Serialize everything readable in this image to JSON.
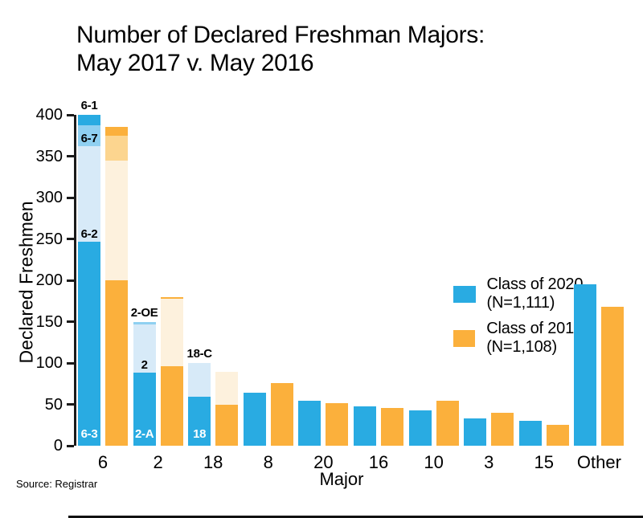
{
  "page": {
    "title_line1": "Number of Declared Freshman Majors:",
    "title_line2": "May 2017 v. May 2016",
    "source": "Source: Registrar"
  },
  "chart_data": {
    "type": "bar",
    "title": "Number of Declared Freshman Majors: May 2017 v. May 2016",
    "xlabel": "Major",
    "ylabel": "Declared Freshmen",
    "ylim": [
      0,
      400
    ],
    "yticks": [
      0,
      50,
      100,
      150,
      200,
      250,
      300,
      350,
      400
    ],
    "grid": false,
    "legend_position": "upper right inside plot",
    "legend": [
      {
        "label": "Class of 2020 (N=1,111)",
        "color": "#29ABE2"
      },
      {
        "label": "Class of 2019 (N=1,108)",
        "color": "#FBB03C"
      }
    ],
    "colors": {
      "s2020": {
        "solid": "#29ABE2",
        "medium": "#8FD0F1",
        "light": "#D7EAF8"
      },
      "s2019": {
        "solid": "#FBB03C",
        "medium": "#FCD58F",
        "light": "#FDF1DD"
      }
    },
    "categories": [
      "6",
      "2",
      "18",
      "8",
      "20",
      "16",
      "10",
      "3",
      "15",
      "Other"
    ],
    "series": [
      {
        "name": "Class of 2020 (N=1,111)",
        "key": "s2020",
        "totals": [
          400,
          150,
          100,
          64,
          54,
          48,
          43,
          33,
          30,
          195
        ]
      },
      {
        "name": "Class of 2019 (N=1,108)",
        "key": "s2019",
        "totals": [
          385,
          180,
          89,
          76,
          51,
          46,
          54,
          40,
          25,
          168
        ]
      }
    ],
    "bars": [
      {
        "category": "6",
        "s2020": {
          "segments": [
            {
              "label": "6-3",
              "value": 247,
              "shade": "solid",
              "label_color": "#FFFFFF",
              "label_pos": "base"
            },
            {
              "label": "6-2",
              "value": 115,
              "shade": "light",
              "label_color": "#000000",
              "label_pos": "bottom"
            },
            {
              "label": "6-7",
              "value": 25,
              "shade": "medium",
              "label_color": "#000000",
              "label_pos": "bottom"
            },
            {
              "label": "6-1",
              "value": 13,
              "shade": "solid",
              "label_color": "#000000",
              "label_pos": "above"
            }
          ]
        },
        "s2019": {
          "segments": [
            {
              "value": 200,
              "shade": "solid"
            },
            {
              "value": 145,
              "shade": "light"
            },
            {
              "value": 30,
              "shade": "medium"
            },
            {
              "value": 10,
              "shade": "solid"
            }
          ]
        }
      },
      {
        "category": "2",
        "s2020": {
          "segments": [
            {
              "label": "2-A",
              "value": 88,
              "shade": "solid",
              "label_color": "#FFFFFF",
              "label_pos": "base"
            },
            {
              "label": "2",
              "value": 59,
              "shade": "light",
              "label_color": "#000000",
              "label_pos": "bottom"
            },
            {
              "label": "2-OE",
              "value": 3,
              "shade": "medium",
              "label_color": "#000000",
              "label_pos": "above"
            }
          ]
        },
        "s2019": {
          "segments": [
            {
              "value": 96,
              "shade": "solid"
            },
            {
              "value": 82,
              "shade": "light"
            },
            {
              "value": 2,
              "shade": "solid"
            }
          ]
        }
      },
      {
        "category": "18",
        "s2020": {
          "segments": [
            {
              "label": "18",
              "value": 59,
              "shade": "solid",
              "label_color": "#FFFFFF",
              "label_pos": "base"
            },
            {
              "label": "18-C",
              "value": 41,
              "shade": "light",
              "label_color": "#000000",
              "label_pos": "above"
            }
          ]
        },
        "s2019": {
          "segments": [
            {
              "value": 50,
              "shade": "solid"
            },
            {
              "value": 39,
              "shade": "light"
            }
          ]
        }
      },
      {
        "category": "8",
        "s2020": {
          "segments": [
            {
              "value": 64,
              "shade": "solid"
            }
          ]
        },
        "s2019": {
          "segments": [
            {
              "value": 76,
              "shade": "solid"
            }
          ]
        }
      },
      {
        "category": "20",
        "s2020": {
          "segments": [
            {
              "value": 54,
              "shade": "solid"
            }
          ]
        },
        "s2019": {
          "segments": [
            {
              "value": 51,
              "shade": "solid"
            }
          ]
        }
      },
      {
        "category": "16",
        "s2020": {
          "segments": [
            {
              "value": 48,
              "shade": "solid"
            }
          ]
        },
        "s2019": {
          "segments": [
            {
              "value": 46,
              "shade": "solid"
            }
          ]
        }
      },
      {
        "category": "10",
        "s2020": {
          "segments": [
            {
              "value": 43,
              "shade": "solid"
            }
          ]
        },
        "s2019": {
          "segments": [
            {
              "value": 54,
              "shade": "solid"
            }
          ]
        }
      },
      {
        "category": "3",
        "s2020": {
          "segments": [
            {
              "value": 33,
              "shade": "solid"
            }
          ]
        },
        "s2019": {
          "segments": [
            {
              "value": 40,
              "shade": "solid"
            }
          ]
        }
      },
      {
        "category": "15",
        "s2020": {
          "segments": [
            {
              "value": 30,
              "shade": "solid"
            }
          ]
        },
        "s2019": {
          "segments": [
            {
              "value": 25,
              "shade": "solid"
            }
          ]
        }
      },
      {
        "category": "Other",
        "s2020": {
          "segments": [
            {
              "value": 195,
              "shade": "solid"
            }
          ]
        },
        "s2019": {
          "segments": [
            {
              "value": 168,
              "shade": "solid"
            }
          ]
        }
      }
    ]
  }
}
